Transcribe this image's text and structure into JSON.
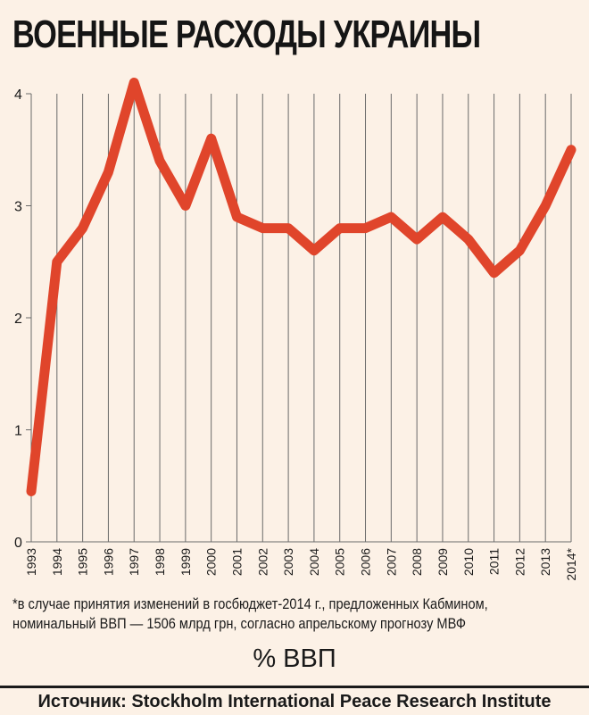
{
  "title": "ВОЕННЫЕ РАСХОДЫ УКРАИНЫ",
  "chart_data": {
    "type": "line",
    "x": [
      "1993",
      "1994",
      "1995",
      "1996",
      "1997",
      "1998",
      "1999",
      "2000",
      "2001",
      "2002",
      "2003",
      "2004",
      "2005",
      "2006",
      "2007",
      "2008",
      "2009",
      "2010",
      "2011",
      "2012",
      "2013",
      "2014*"
    ],
    "series": [
      {
        "values": [
          0.45,
          2.5,
          2.8,
          3.3,
          4.1,
          3.4,
          3.0,
          3.6,
          2.9,
          2.8,
          2.8,
          2.6,
          2.8,
          2.8,
          2.9,
          2.7,
          2.9,
          2.7,
          2.4,
          2.6,
          3.0,
          3.5
        ]
      }
    ],
    "yticks": [
      "0",
      "1",
      "2",
      "3",
      "4"
    ],
    "ylim": [
      0,
      4
    ],
    "ylabel": "% ВВП",
    "grid": "vertical",
    "line_color": "#e0452b",
    "axis_color": "#6a6a6a"
  },
  "note": {
    "line1": "*в случае принятия изменений в госбюджет-2014 г., предложенных Кабмином,",
    "line2": "номинальный ВВП — 1506 млрд грн, согласно апрельскому прогнозу МВФ"
  },
  "source": "Источник: Stockholm International Peace Research Institute"
}
